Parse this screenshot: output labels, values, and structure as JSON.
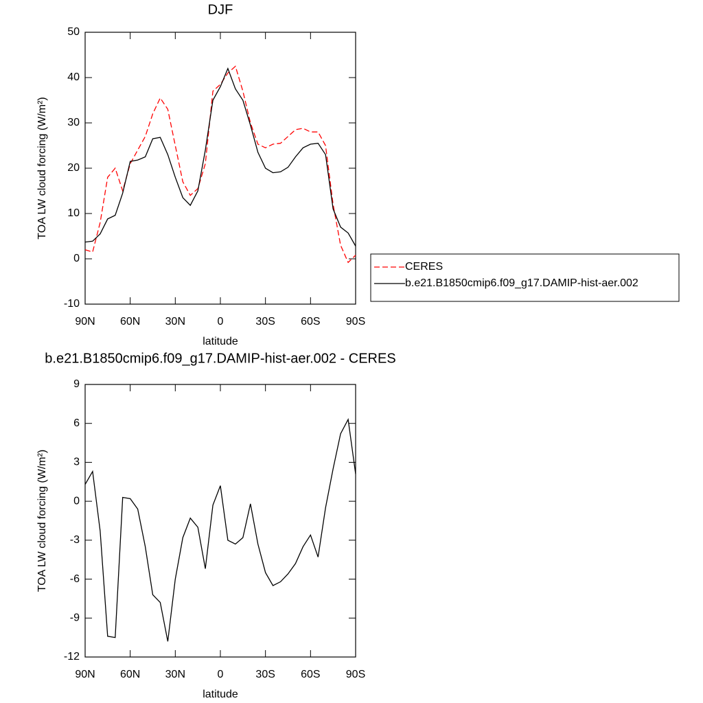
{
  "chart_data": [
    {
      "type": "line",
      "title": "DJF",
      "xlabel": "latitude",
      "ylabel": "TOA LW cloud forcing (W/m²)",
      "x": [
        90,
        85,
        80,
        75,
        70,
        65,
        60,
        55,
        50,
        45,
        40,
        35,
        30,
        25,
        20,
        15,
        10,
        5,
        0,
        -5,
        -10,
        -15,
        -20,
        -25,
        -30,
        -35,
        -40,
        -45,
        -50,
        -55,
        -60,
        -65,
        -70,
        -75,
        -80,
        -85,
        -90
      ],
      "series": [
        {
          "name": "CERES",
          "color": "#ff0000",
          "line_style": "dashed",
          "values": [
            2,
            1.5,
            8,
            18,
            20,
            15,
            21,
            24,
            27,
            32,
            35.5,
            33,
            25,
            17,
            14,
            15.5,
            21,
            37,
            38.5,
            41,
            42.5,
            37,
            30,
            25.3,
            24.5,
            25.3,
            25.5,
            27,
            28.5,
            28.8,
            28,
            28,
            25,
            12,
            3,
            -0.8,
            0.8
          ]
        },
        {
          "name": "b.e21.B1850cmip6.f09_g17.DAMIP-hist-aer.002",
          "color": "#000000",
          "line_style": "solid",
          "values": [
            3.7,
            3.9,
            5.5,
            8.8,
            9.6,
            14.5,
            21.5,
            21.8,
            22.5,
            26.5,
            26.8,
            23,
            18,
            13.5,
            11.8,
            15,
            24,
            35,
            38,
            42,
            37.5,
            35,
            29.5,
            23.5,
            20,
            19,
            19.2,
            20.2,
            22.5,
            24.5,
            25.3,
            25.5,
            23,
            11,
            7,
            5.7,
            2.8
          ]
        }
      ],
      "xlim": [
        90,
        -90
      ],
      "xticks": [
        {
          "value": 90,
          "label": "90N"
        },
        {
          "value": 60,
          "label": "60N"
        },
        {
          "value": 30,
          "label": "30N"
        },
        0,
        {
          "value": -30,
          "label": "30S"
        },
        {
          "value": -60,
          "label": "60S"
        },
        {
          "value": -90,
          "label": "90S"
        }
      ],
      "ylim": [
        -10,
        50
      ],
      "yticks": [
        -10,
        0,
        10,
        20,
        30,
        40,
        50
      ],
      "legend": "right"
    },
    {
      "type": "line",
      "title": "b.e21.B1850cmip6.f09_g17.DAMIP-hist-aer.002 - CERES",
      "xlabel": "latitude",
      "ylabel": "TOA LW cloud forcing (W/m²)",
      "x": [
        90,
        85,
        80,
        75,
        70,
        65,
        60,
        55,
        50,
        45,
        40,
        35,
        30,
        25,
        20,
        15,
        10,
        5,
        0,
        -5,
        -10,
        -15,
        -20,
        -25,
        -30,
        -35,
        -40,
        -45,
        -50,
        -55,
        -60,
        -65,
        -70,
        -75,
        -80,
        -85,
        -90
      ],
      "values": [
        1.3,
        2.3,
        -2.3,
        -10.4,
        -10.5,
        0.3,
        0.2,
        -0.6,
        -3.5,
        -7.2,
        -7.8,
        -10.8,
        -6,
        -2.8,
        -1.3,
        -2,
        -5.2,
        -0.3,
        1.2,
        -3,
        -3.3,
        -2.8,
        -0.2,
        -3.3,
        -5.5,
        -6.5,
        -6.2,
        -5.6,
        -4.8,
        -3.5,
        -2.6,
        -4.3,
        -0.5,
        2.5,
        5.2,
        6.3,
        2.1
      ],
      "color": "#000000",
      "xlim": [
        90,
        -90
      ],
      "xticks": [
        {
          "value": 90,
          "label": "90N"
        },
        {
          "value": 60,
          "label": "60N"
        },
        {
          "value": 30,
          "label": "30N"
        },
        0,
        {
          "value": -30,
          "label": "30S"
        },
        {
          "value": -60,
          "label": "60S"
        },
        {
          "value": -90,
          "label": "90S"
        }
      ],
      "ylim": [
        -12,
        9
      ],
      "yticks": [
        -12,
        -9,
        -6,
        -3,
        0,
        3,
        6,
        9
      ]
    }
  ]
}
